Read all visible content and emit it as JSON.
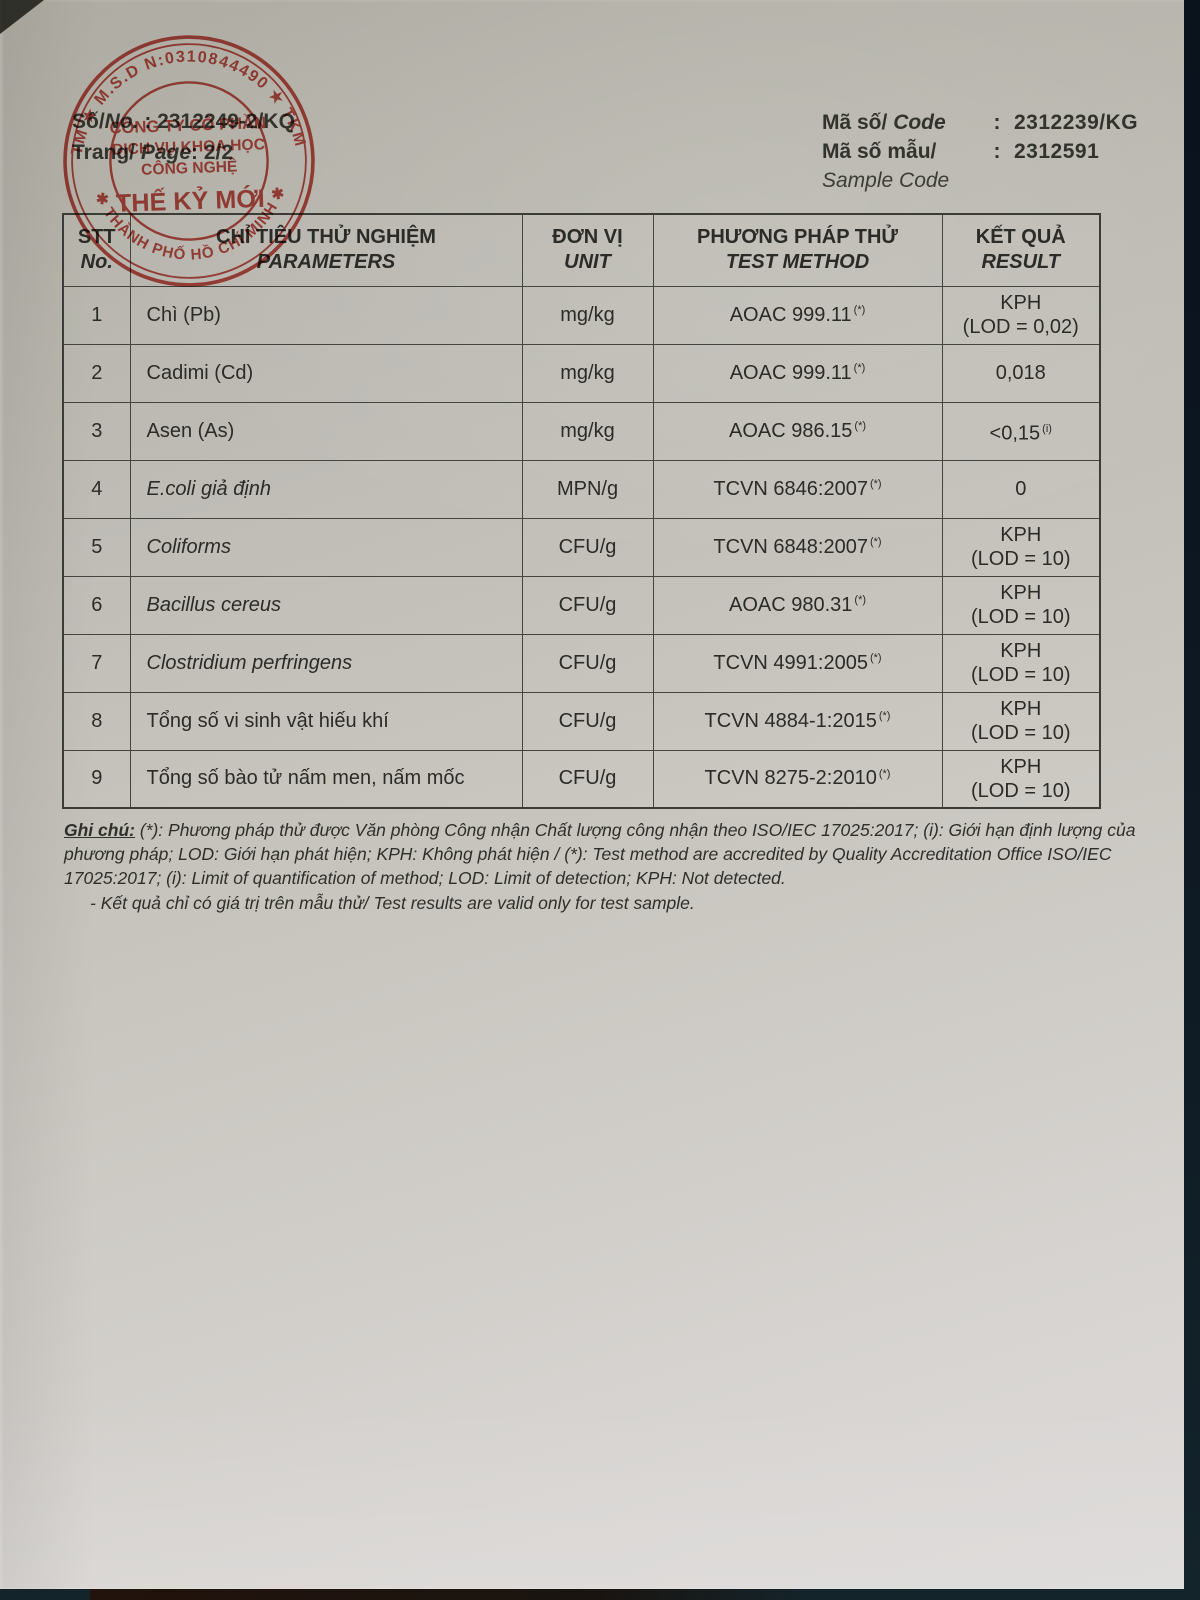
{
  "photo": {
    "background": "#0e1a24",
    "paper": "#c9c6c0"
  },
  "meta_left": {
    "doc_no": {
      "label_vi": "Số/",
      "label_en": "No.",
      "sep": " : ",
      "value": "2312249-2/KQ"
    },
    "page": {
      "label_vi": "Trang/",
      "label_en": " Page",
      "sep": ": ",
      "value": "2/2"
    }
  },
  "meta_right": {
    "code": {
      "label_vi": "Mã số/",
      "label_en": " Code",
      "colon": ":",
      "value": "2312239/KG"
    },
    "sample": {
      "label_vi": "Mã số mẫu/",
      "label_sub": "Sample Code",
      "colon": ":",
      "value": "2312591"
    }
  },
  "stamp": {
    "color": "#c03a32",
    "top_arc": "TM ★ M.S.D N:0310844490 ★ TKM",
    "bottom_arc": "✱ THÀNH PHỐ HỒ CHÍ MINH ✱",
    "line1": "CÔNG TY CỔ PHẦN",
    "line2": "DỊCH VỤ KHOA HỌC",
    "line3": "CÔNG NGHỆ",
    "line4": "THẾ KỶ MỚI"
  },
  "table": {
    "headers": [
      {
        "vi": "STT",
        "en": "No."
      },
      {
        "vi": "CHỈ TIÊU THỬ NGHIỆM",
        "en": "PARAMETERS"
      },
      {
        "vi": "ĐƠN VỊ",
        "en": "UNIT"
      },
      {
        "vi": "PHƯƠNG PHÁP THỬ",
        "en": "TEST METHOD"
      },
      {
        "vi": "KẾT QUẢ",
        "en": "RESULT"
      }
    ],
    "rows": [
      {
        "no": "1",
        "parameter": "Chì (Pb)",
        "italic": false,
        "unit": "mg/kg",
        "method": "AOAC 999.11",
        "method_sup": "(*)",
        "result_line1": "KPH",
        "result_sup": "",
        "result_line2": "(LOD = 0,02)"
      },
      {
        "no": "2",
        "parameter": "Cadimi (Cd)",
        "italic": false,
        "unit": "mg/kg",
        "method": "AOAC 999.11",
        "method_sup": "(*)",
        "result_line1": "0,018",
        "result_sup": "",
        "result_line2": ""
      },
      {
        "no": "3",
        "parameter": "Asen (As)",
        "italic": false,
        "unit": "mg/kg",
        "method": "AOAC 986.15",
        "method_sup": "(*)",
        "result_line1": "<0,15",
        "result_sup": "(i)",
        "result_line2": ""
      },
      {
        "no": "4",
        "parameter": "E.coli giả định",
        "italic": true,
        "unit": "MPN/g",
        "method": "TCVN 6846:2007",
        "method_sup": "(*)",
        "result_line1": "0",
        "result_sup": "",
        "result_line2": ""
      },
      {
        "no": "5",
        "parameter": "Coliforms",
        "italic": true,
        "unit": "CFU/g",
        "method": "TCVN 6848:2007",
        "method_sup": "(*)",
        "result_line1": "KPH",
        "result_sup": "",
        "result_line2": "(LOD = 10)"
      },
      {
        "no": "6",
        "parameter": "Bacillus cereus",
        "italic": true,
        "unit": "CFU/g",
        "method": "AOAC 980.31",
        "method_sup": "(*)",
        "result_line1": "KPH",
        "result_sup": "",
        "result_line2": "(LOD = 10)"
      },
      {
        "no": "7",
        "parameter": "Clostridium perfringens",
        "italic": true,
        "unit": "CFU/g",
        "method": "TCVN 4991:2005",
        "method_sup": "(*)",
        "result_line1": "KPH",
        "result_sup": "",
        "result_line2": "(LOD = 10)"
      },
      {
        "no": "8",
        "parameter": "Tổng số vi sinh vật hiếu khí",
        "italic": false,
        "unit": "CFU/g",
        "method": "TCVN 4884-1:2015",
        "method_sup": "(*)",
        "result_line1": "KPH",
        "result_sup": "",
        "result_line2": "(LOD = 10)"
      },
      {
        "no": "9",
        "parameter": "Tổng số bào tử nấm men, nấm mốc",
        "italic": false,
        "unit": "CFU/g",
        "method": "TCVN 8275-2:2010",
        "method_sup": "(*)",
        "result_line1": "KPH",
        "result_sup": "",
        "result_line2": "(LOD = 10)"
      }
    ]
  },
  "notes": {
    "label": "Ghi chú:",
    "body": " (*): Phương pháp thử được Văn phòng Công nhận Chất lượng công nhận theo ISO/IEC 17025:2017; (i): Giới hạn định lượng của phương pháp; LOD: Giới hạn phát hiện; KPH: Không phát hiện / (*): Test method are accredited by Quality Accreditation Office ISO/IEC 17025:2017; (i): Limit of quantification of method; LOD: Limit of detection; KPH: Not detected.",
    "note2": "- Kết quả chỉ có giá trị trên mẫu thử/ Test results are valid only for test sample."
  }
}
